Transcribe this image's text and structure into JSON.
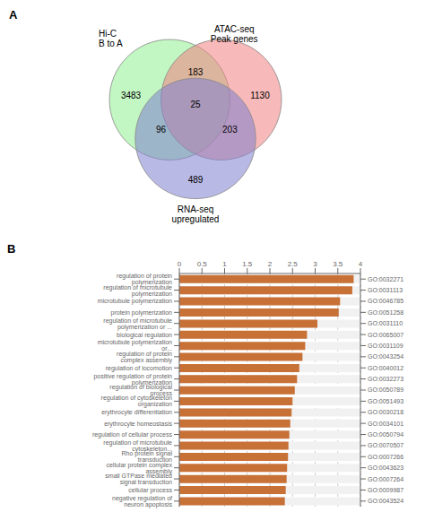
{
  "chart_data": [
    {
      "type": "venn",
      "title": "A",
      "sets": [
        {
          "name": "Hi-C\nB to A",
          "color": "#90EE90"
        },
        {
          "name": "ATAC-seq\nPeak genes",
          "color": "#F08080"
        },
        {
          "name": "RNA-seq\nupregulated",
          "color": "#8080D0"
        }
      ],
      "regions": [
        {
          "sets": [
            0
          ],
          "value": 3483
        },
        {
          "sets": [
            1
          ],
          "value": 1130
        },
        {
          "sets": [
            2
          ],
          "value": 489
        },
        {
          "sets": [
            0,
            1
          ],
          "value": 183
        },
        {
          "sets": [
            0,
            2
          ],
          "value": 96
        },
        {
          "sets": [
            1,
            2
          ],
          "value": 203
        },
        {
          "sets": [
            0,
            1,
            2
          ],
          "value": 25
        }
      ]
    },
    {
      "type": "bar",
      "title": "B",
      "orientation": "horizontal",
      "categories": [
        "regulation of protein polymerization",
        "regulation of microtubule polymerization",
        "microtubule polymerization",
        "protein polymerization",
        "regulation of microtubule polymerization or ...",
        "biological regulation",
        "microtubule polymerization or...",
        "regulation of protein complex assembly",
        "regulation of locomotion",
        "positive regulation of protein polymerization",
        "regulation of biological process",
        "regulation of cytoskeleton organization",
        "erythrocyte dïfferentiation",
        "erythrocyte homeostasis",
        "regulation of cellular process",
        "regulation of microtubule cytoskeleton...",
        "Rho protein signal transduction",
        "cellular protein complex assembly",
        "small GTPase mediated signal transduction",
        "cellular process",
        "negative regulation of neuron apoptosis"
      ],
      "go_ids": [
        "GO:0032271",
        "GO:0031113",
        "GO:0046785",
        "GO:0051258",
        "GO:0031110",
        "GO:0065007",
        "GO:0031109",
        "GO:0043254",
        "GO:0040012",
        "GO:0032273",
        "GO:0050789",
        "GO:0051493",
        "GO:0030218",
        "GO:0034101",
        "GO:0050794",
        "GO:0070507",
        "GO:0007266",
        "GO:0043623",
        "GO:0007264",
        "GO:0009987",
        "GO:0043524"
      ],
      "values": [
        3.85,
        3.82,
        3.55,
        3.52,
        3.05,
        2.82,
        2.78,
        2.72,
        2.65,
        2.6,
        2.55,
        2.5,
        2.48,
        2.45,
        2.43,
        2.41,
        2.4,
        2.38,
        2.37,
        2.35,
        2.33
      ],
      "color": "#C87137",
      "xlim": [
        0,
        4
      ],
      "xticks": [
        0,
        0.5,
        1,
        1.5,
        2,
        2.5,
        3,
        3.5,
        4
      ]
    }
  ]
}
